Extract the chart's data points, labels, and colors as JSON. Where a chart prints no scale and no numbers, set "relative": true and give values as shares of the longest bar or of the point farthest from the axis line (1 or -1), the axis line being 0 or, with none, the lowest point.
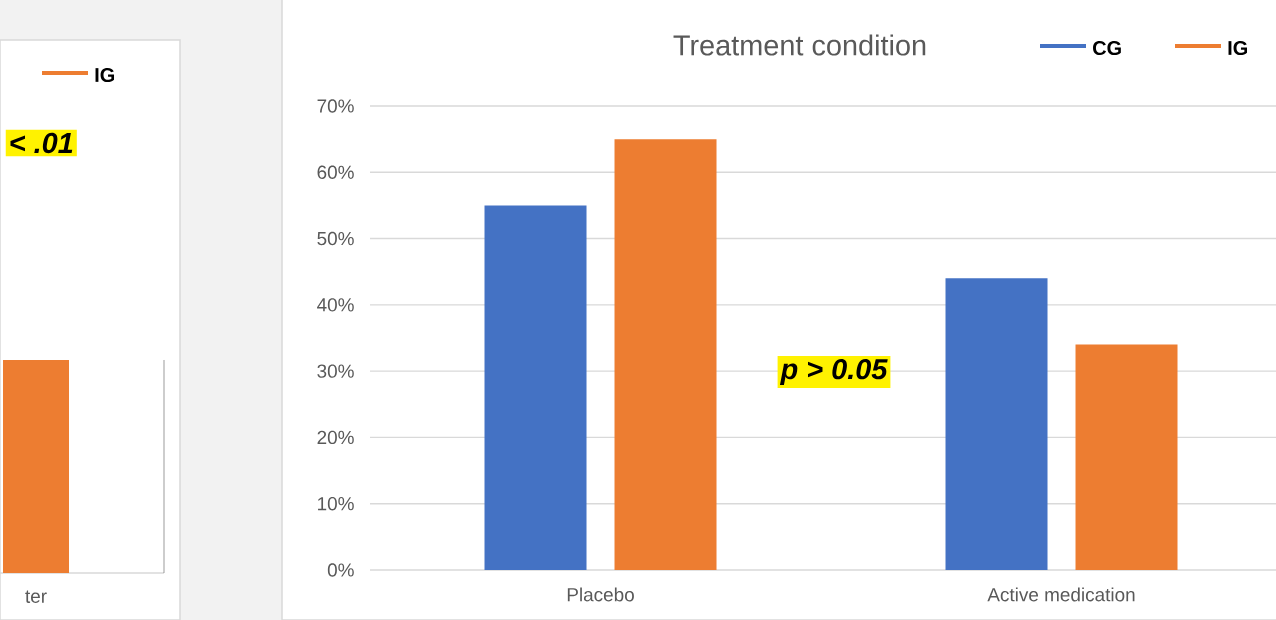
{
  "chart_data": [
    {
      "type": "bar",
      "relative": true,
      "categories": [
        "ter"
      ],
      "series": [
        {
          "name": "IG",
          "color": "#ed7d31",
          "values": [
            1
          ]
        }
      ],
      "legend": "top right",
      "annotations": [
        "< .01"
      ]
    },
    {
      "type": "bar",
      "title": "Treatment condition",
      "categories": [
        "Placebo",
        "Active medication"
      ],
      "series": [
        {
          "name": "CG",
          "color": "#4472c4",
          "values": [
            55,
            44
          ]
        },
        {
          "name": "IG",
          "color": "#ed7d31",
          "values": [
            65,
            34
          ]
        }
      ],
      "ylim": [
        0,
        70
      ],
      "yticks": [
        {
          "value": 0,
          "label": "0%"
        },
        {
          "value": 10,
          "label": "10%"
        },
        {
          "value": 20,
          "label": "20%"
        },
        {
          "value": 30,
          "label": "30%"
        },
        {
          "value": 40,
          "label": "40%"
        },
        {
          "value": 50,
          "label": "50%"
        },
        {
          "value": 60,
          "label": "60%"
        },
        {
          "value": 70,
          "label": "70%"
        }
      ],
      "grid": "y",
      "legend": "top right",
      "annotations": [
        "p > 0.05"
      ]
    }
  ]
}
